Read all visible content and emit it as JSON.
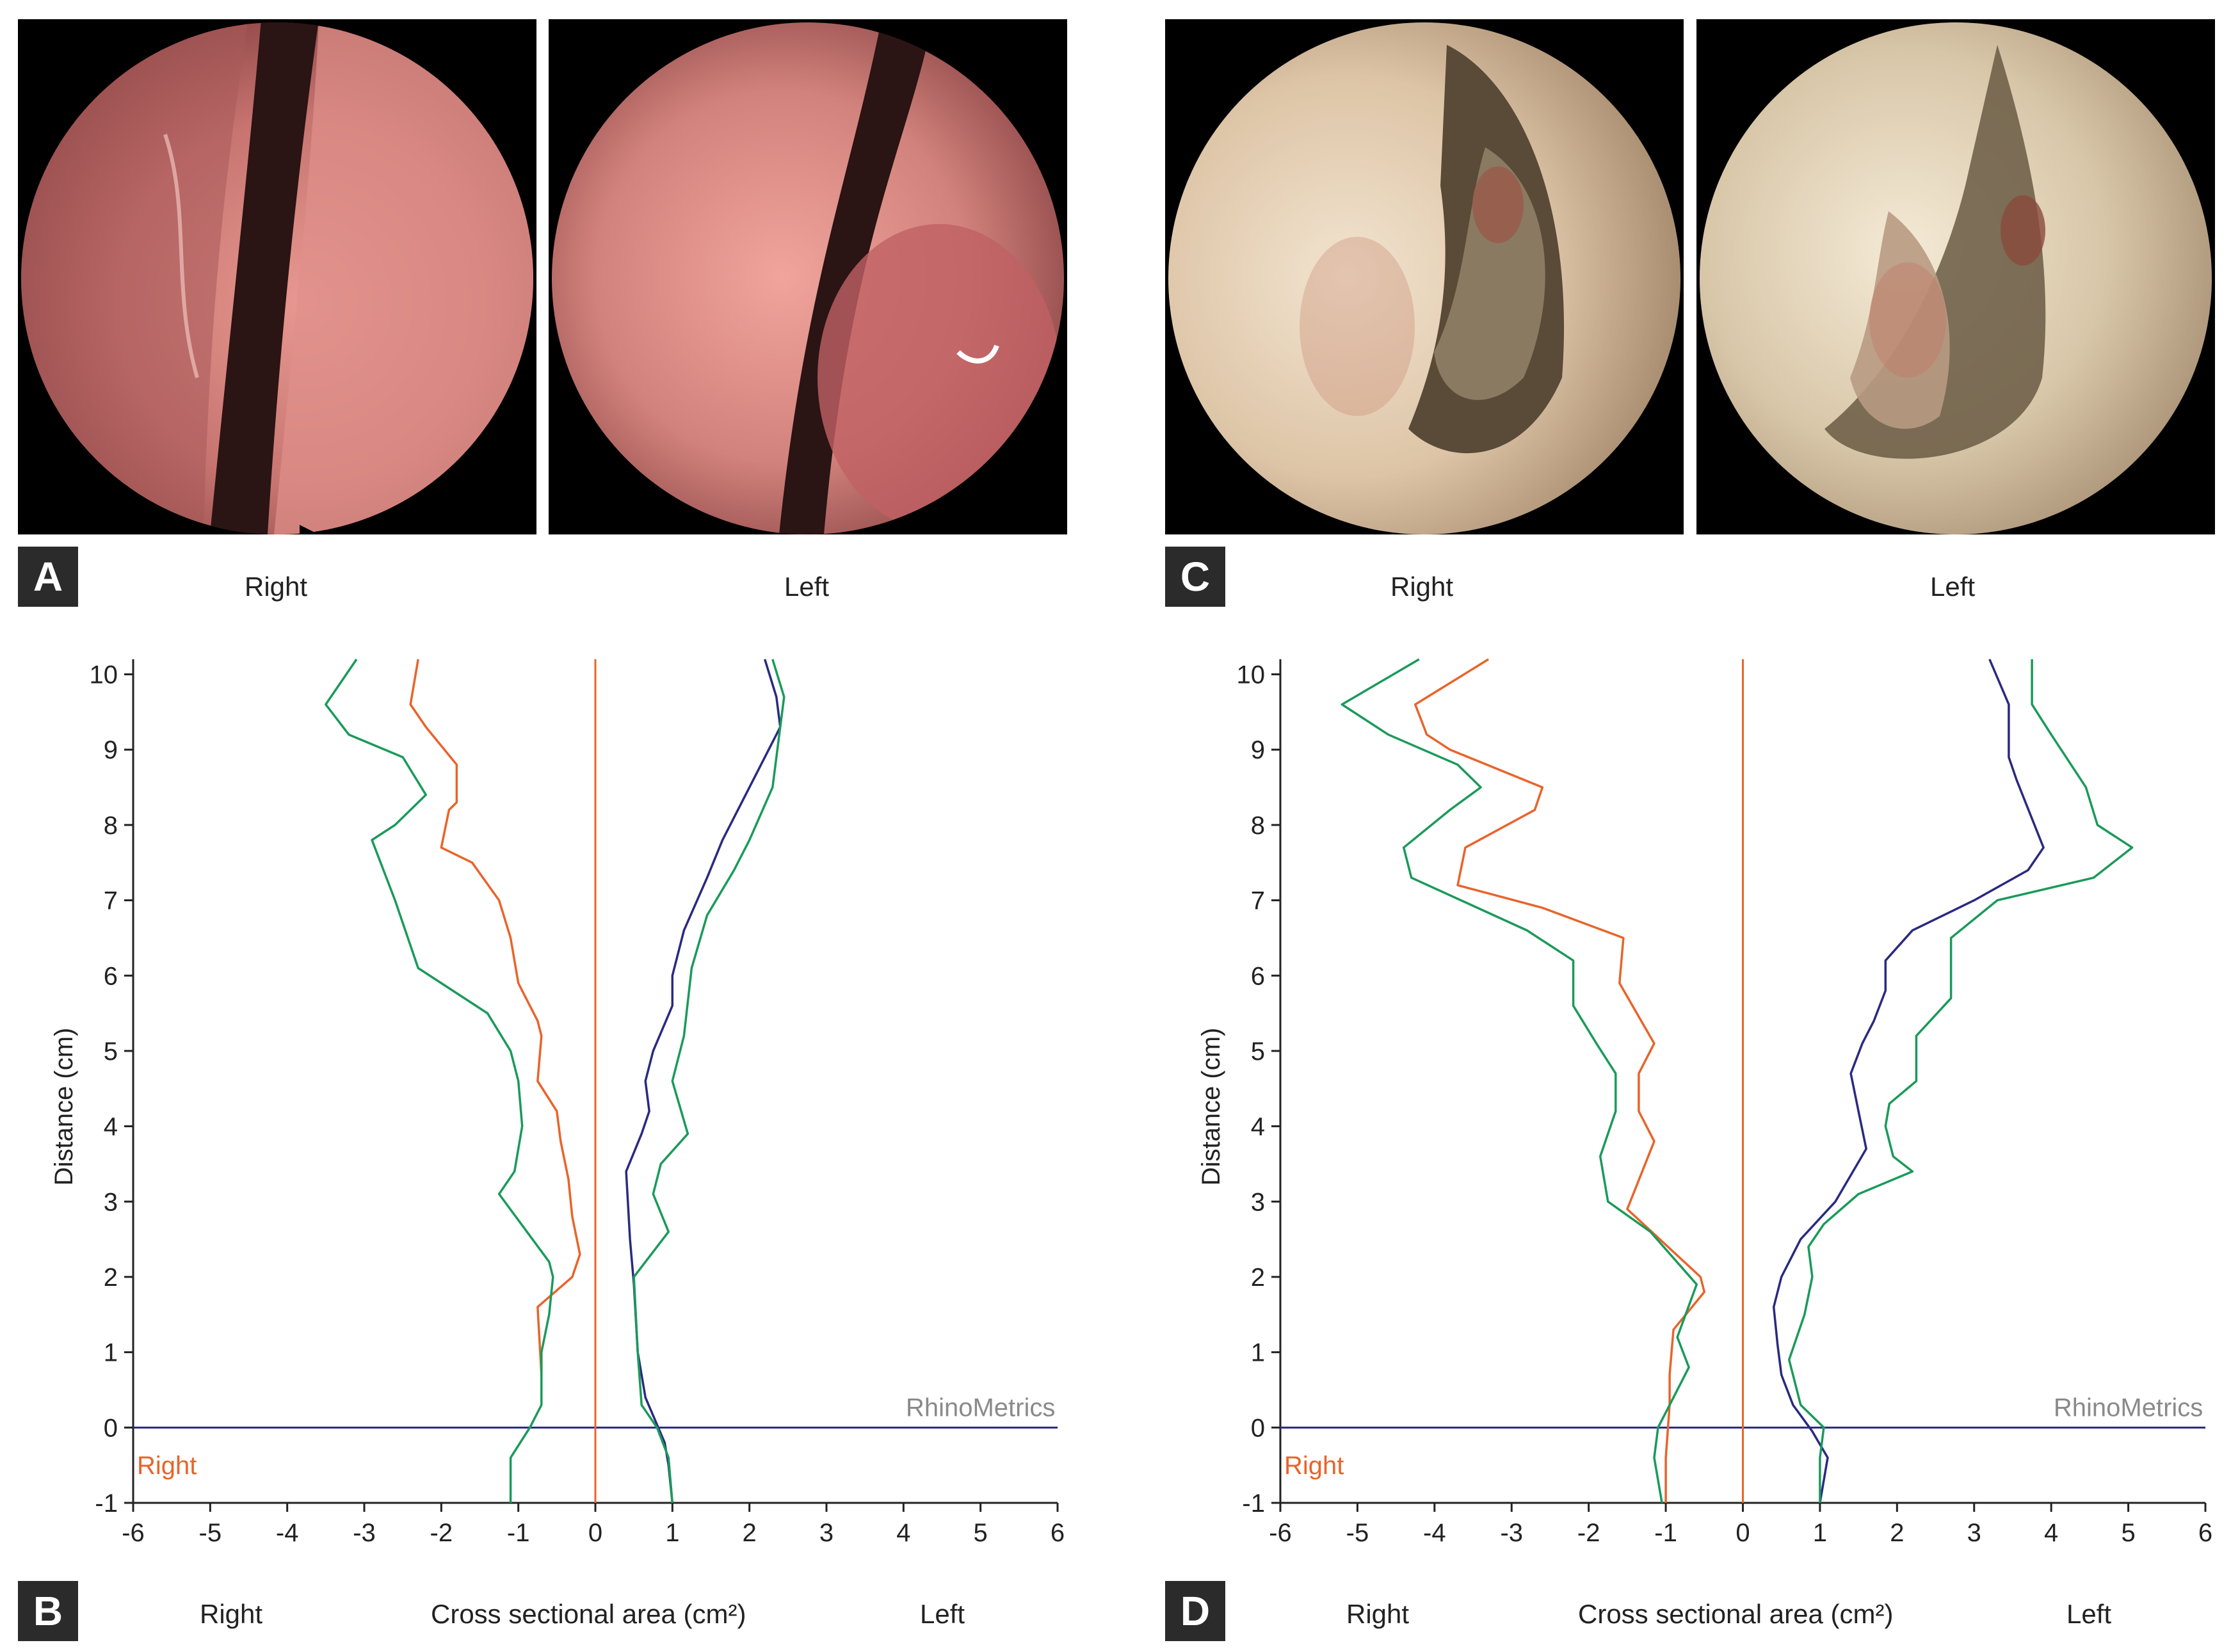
{
  "panels": {
    "A": {
      "badge": "A",
      "right_label": "Right",
      "left_label": "Left"
    },
    "B": {
      "badge": "B",
      "right_label": "Right",
      "center_label": "Cross sectional area (cm²)",
      "left_label": "Left"
    },
    "C": {
      "badge": "C",
      "right_label": "Right",
      "left_label": "Left"
    },
    "D": {
      "badge": "D",
      "right_label": "Right",
      "center_label": "Cross sectional area (cm²)",
      "left_label": "Left"
    }
  },
  "photos": {
    "A_right": {
      "tone": "pink",
      "base": "#d98a8a",
      "mid": "#b85e5e",
      "dark": "#3a1a1a"
    },
    "A_left": {
      "tone": "pink",
      "base": "#e0928e",
      "mid": "#c06a68",
      "dark": "#3a1a1a"
    },
    "C_right": {
      "tone": "pale",
      "base": "#e8d8c4",
      "mid": "#b89a7c",
      "dark": "#3c2c20"
    },
    "C_left": {
      "tone": "pale",
      "base": "#ece2cc",
      "mid": "#b89c80",
      "dark": "#3c2c20"
    }
  },
  "chart_data": [
    {
      "type": "line",
      "panel": "B",
      "xlabel": "Cross sectional area (cm²)",
      "ylabel": "Distance (cm)",
      "xlim": [
        -6,
        6
      ],
      "ylim": [
        -1,
        10.2
      ],
      "xticks": [
        "-6",
        "-5",
        "-4",
        "-3",
        "-2",
        "-1",
        "0",
        "1",
        "2",
        "3",
        "4",
        "5",
        "6"
      ],
      "yticks": [
        "-1",
        "0",
        "1",
        "2",
        "3",
        "4",
        "5",
        "6",
        "7",
        "8",
        "9",
        "10"
      ],
      "watermark": "RhinoMetrics",
      "inner_label": "Right",
      "colors": {
        "orange": "#e8642a",
        "green": "#1a9a5a",
        "navy": "#2a2a80",
        "axis": "#2a2a80",
        "watermark": "#8a8a8a"
      },
      "series": [
        {
          "side": "right",
          "color": "orange",
          "points": [
            [
              -0.7,
              1.0
            ],
            [
              -0.7,
              0.7
            ],
            [
              -0.75,
              1.6
            ],
            [
              -0.3,
              2.0
            ],
            [
              -0.2,
              2.3
            ],
            [
              -0.3,
              2.8
            ],
            [
              -0.35,
              3.3
            ],
            [
              -0.45,
              3.8
            ],
            [
              -0.5,
              4.2
            ],
            [
              -0.75,
              4.6
            ],
            [
              -0.7,
              5.2
            ],
            [
              -0.75,
              5.4
            ],
            [
              -1.0,
              5.9
            ],
            [
              -1.1,
              6.5
            ],
            [
              -1.25,
              7.0
            ],
            [
              -1.6,
              7.5
            ],
            [
              -2.0,
              7.7
            ],
            [
              -1.9,
              8.2
            ],
            [
              -1.8,
              8.3
            ],
            [
              -1.8,
              8.8
            ],
            [
              -2.2,
              9.3
            ],
            [
              -2.4,
              9.6
            ],
            [
              -2.3,
              10.2
            ]
          ]
        },
        {
          "side": "right",
          "color": "green",
          "points": [
            [
              -1.1,
              -1.0
            ],
            [
              -1.1,
              -0.4
            ],
            [
              -0.85,
              0.0
            ],
            [
              -0.7,
              0.3
            ],
            [
              -0.7,
              1.0
            ],
            [
              -0.6,
              1.5
            ],
            [
              -0.55,
              2.0
            ],
            [
              -0.6,
              2.2
            ],
            [
              -1.25,
              3.1
            ],
            [
              -1.05,
              3.4
            ],
            [
              -0.95,
              4.0
            ],
            [
              -1.0,
              4.6
            ],
            [
              -1.1,
              5.0
            ],
            [
              -1.4,
              5.5
            ],
            [
              -2.0,
              5.9
            ],
            [
              -2.3,
              6.1
            ],
            [
              -2.6,
              7.0
            ],
            [
              -2.9,
              7.8
            ],
            [
              -2.6,
              8.0
            ],
            [
              -2.2,
              8.4
            ],
            [
              -2.5,
              8.9
            ],
            [
              -3.2,
              9.2
            ],
            [
              -3.5,
              9.6
            ],
            [
              -3.1,
              10.2
            ]
          ]
        },
        {
          "side": "left",
          "color": "navy",
          "points": [
            [
              1.0,
              -1.0
            ],
            [
              0.95,
              -0.5
            ],
            [
              0.9,
              -0.2
            ],
            [
              0.65,
              0.4
            ],
            [
              0.55,
              1.0
            ],
            [
              0.5,
              1.9
            ],
            [
              0.45,
              2.5
            ],
            [
              0.4,
              3.4
            ],
            [
              0.6,
              3.9
            ],
            [
              0.7,
              4.2
            ],
            [
              0.65,
              4.6
            ],
            [
              0.75,
              5.0
            ],
            [
              1.0,
              5.6
            ],
            [
              1.0,
              6.0
            ],
            [
              1.15,
              6.6
            ],
            [
              1.45,
              7.3
            ],
            [
              1.65,
              7.8
            ],
            [
              2.0,
              8.5
            ],
            [
              2.4,
              9.3
            ],
            [
              2.35,
              9.7
            ],
            [
              2.2,
              10.2
            ]
          ]
        },
        {
          "side": "left",
          "color": "green",
          "points": [
            [
              1.0,
              -1.0
            ],
            [
              0.95,
              -0.4
            ],
            [
              0.8,
              0.0
            ],
            [
              0.6,
              0.3
            ],
            [
              0.55,
              1.0
            ],
            [
              0.5,
              2.0
            ],
            [
              0.95,
              2.6
            ],
            [
              0.75,
              3.1
            ],
            [
              0.85,
              3.5
            ],
            [
              1.2,
              3.9
            ],
            [
              1.0,
              4.6
            ],
            [
              1.15,
              5.2
            ],
            [
              1.25,
              6.1
            ],
            [
              1.45,
              6.8
            ],
            [
              1.8,
              7.4
            ],
            [
              2.0,
              7.8
            ],
            [
              2.3,
              8.5
            ],
            [
              2.4,
              9.3
            ],
            [
              2.45,
              9.7
            ],
            [
              2.3,
              10.2
            ]
          ]
        }
      ]
    },
    {
      "type": "line",
      "panel": "D",
      "xlabel": "Cross sectional area (cm²)",
      "ylabel": "Distance (cm)",
      "xlim": [
        -6,
        6
      ],
      "ylim": [
        -1,
        10.2
      ],
      "xticks": [
        "-6",
        "-5",
        "-4",
        "-3",
        "-2",
        "-1",
        "0",
        "1",
        "2",
        "3",
        "4",
        "5",
        "6"
      ],
      "yticks": [
        "-1",
        "0",
        "1",
        "2",
        "3",
        "4",
        "5",
        "6",
        "7",
        "8",
        "9",
        "10"
      ],
      "watermark": "RhinoMetrics",
      "inner_label": "Right",
      "colors": {
        "orange": "#e8642a",
        "green": "#1a9a5a",
        "navy": "#2a2a80",
        "axis": "#2a2a80",
        "watermark": "#8a8a8a"
      },
      "series": [
        {
          "side": "right",
          "color": "orange",
          "points": [
            [
              -1.0,
              -1.0
            ],
            [
              -1.0,
              -0.4
            ],
            [
              -0.95,
              0.3
            ],
            [
              -0.95,
              0.7
            ],
            [
              -0.9,
              1.3
            ],
            [
              -0.5,
              1.8
            ],
            [
              -0.55,
              2.0
            ],
            [
              -1.5,
              2.9
            ],
            [
              -1.15,
              3.8
            ],
            [
              -1.35,
              4.2
            ],
            [
              -1.35,
              4.7
            ],
            [
              -1.15,
              5.1
            ],
            [
              -1.6,
              5.9
            ],
            [
              -1.55,
              6.5
            ],
            [
              -2.6,
              6.9
            ],
            [
              -3.7,
              7.2
            ],
            [
              -3.6,
              7.7
            ],
            [
              -2.7,
              8.2
            ],
            [
              -2.6,
              8.5
            ],
            [
              -3.8,
              9.0
            ],
            [
              -4.1,
              9.2
            ],
            [
              -4.25,
              9.6
            ],
            [
              -3.3,
              10.2
            ]
          ]
        },
        {
          "side": "right",
          "color": "green",
          "points": [
            [
              -1.05,
              -1.0
            ],
            [
              -1.15,
              -0.4
            ],
            [
              -1.1,
              0.0
            ],
            [
              -0.8,
              0.6
            ],
            [
              -0.7,
              0.8
            ],
            [
              -0.85,
              1.2
            ],
            [
              -0.6,
              1.9
            ],
            [
              -1.2,
              2.6
            ],
            [
              -1.75,
              3.0
            ],
            [
              -1.85,
              3.6
            ],
            [
              -1.65,
              4.2
            ],
            [
              -1.65,
              4.7
            ],
            [
              -1.9,
              5.1
            ],
            [
              -2.2,
              5.6
            ],
            [
              -2.2,
              6.2
            ],
            [
              -2.8,
              6.6
            ],
            [
              -4.3,
              7.3
            ],
            [
              -4.4,
              7.7
            ],
            [
              -3.8,
              8.2
            ],
            [
              -3.4,
              8.5
            ],
            [
              -3.7,
              8.8
            ],
            [
              -4.6,
              9.2
            ],
            [
              -5.2,
              9.6
            ],
            [
              -4.2,
              10.2
            ]
          ]
        },
        {
          "side": "left",
          "color": "navy",
          "points": [
            [
              1.0,
              -1.0
            ],
            [
              1.1,
              -0.4
            ],
            [
              0.9,
              -0.05
            ],
            [
              0.65,
              0.3
            ],
            [
              0.5,
              0.7
            ],
            [
              0.45,
              1.1
            ],
            [
              0.4,
              1.6
            ],
            [
              0.5,
              2.0
            ],
            [
              0.75,
              2.5
            ],
            [
              1.2,
              3.0
            ],
            [
              1.6,
              3.7
            ],
            [
              1.5,
              4.2
            ],
            [
              1.4,
              4.7
            ],
            [
              1.55,
              5.1
            ],
            [
              1.7,
              5.4
            ],
            [
              1.85,
              5.8
            ],
            [
              1.85,
              6.2
            ],
            [
              2.2,
              6.6
            ],
            [
              3.0,
              7.0
            ],
            [
              3.7,
              7.4
            ],
            [
              3.9,
              7.7
            ],
            [
              3.55,
              8.6
            ],
            [
              3.45,
              8.9
            ],
            [
              3.45,
              9.6
            ],
            [
              3.2,
              10.2
            ]
          ]
        },
        {
          "side": "left",
          "color": "green",
          "points": [
            [
              1.0,
              -1.0
            ],
            [
              1.0,
              -0.4
            ],
            [
              1.05,
              0.0
            ],
            [
              0.75,
              0.3
            ],
            [
              0.6,
              0.9
            ],
            [
              0.8,
              1.5
            ],
            [
              0.9,
              2.0
            ],
            [
              0.85,
              2.4
            ],
            [
              1.05,
              2.7
            ],
            [
              1.5,
              3.1
            ],
            [
              2.2,
              3.4
            ],
            [
              1.95,
              3.6
            ],
            [
              1.85,
              4.0
            ],
            [
              1.9,
              4.3
            ],
            [
              2.25,
              4.6
            ],
            [
              2.25,
              5.2
            ],
            [
              2.7,
              5.7
            ],
            [
              2.7,
              6.5
            ],
            [
              3.3,
              7.0
            ],
            [
              4.55,
              7.3
            ],
            [
              5.05,
              7.7
            ],
            [
              4.6,
              8.0
            ],
            [
              4.45,
              8.5
            ],
            [
              4.0,
              9.2
            ],
            [
              3.75,
              9.6
            ],
            [
              3.75,
              10.2
            ]
          ]
        }
      ]
    }
  ]
}
